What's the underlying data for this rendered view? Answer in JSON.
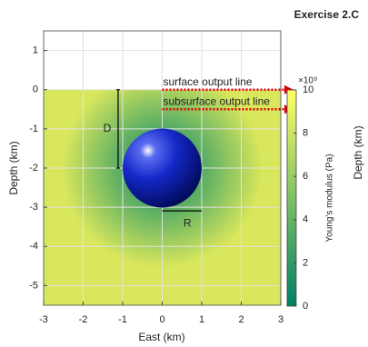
{
  "chart_data": {
    "type": "field",
    "title": "Exercise 2.C",
    "x_label": "East (km)",
    "y_label": "Depth (km)",
    "right_label": "Depth (km)",
    "xlim": [
      -3,
      3
    ],
    "ylim": [
      -5.5,
      1.5
    ],
    "xticks": [
      -3,
      -2,
      -1,
      0,
      1,
      2,
      3
    ],
    "yticks": [
      -5,
      -4,
      -3,
      -2,
      -1,
      0,
      1
    ],
    "grid": true,
    "sphere": {
      "x": 0,
      "y": -2,
      "radius": 1,
      "color": "#1428c8"
    },
    "depth_label": "D",
    "radius_label": "R",
    "output_lines": [
      {
        "label": "surface output line",
        "depth": 0,
        "color": "#e00000"
      },
      {
        "label": "subsurface output line",
        "depth": -0.5,
        "color": "#e00000"
      }
    ],
    "colorbar": {
      "label": "Young's modulus (Pa)",
      "exponent_label": "×10⁹",
      "clim": [
        0,
        10
      ],
      "ticks": [
        0,
        2,
        4,
        6,
        8,
        10
      ],
      "colors": [
        "#008066",
        "#ffff66"
      ]
    }
  }
}
